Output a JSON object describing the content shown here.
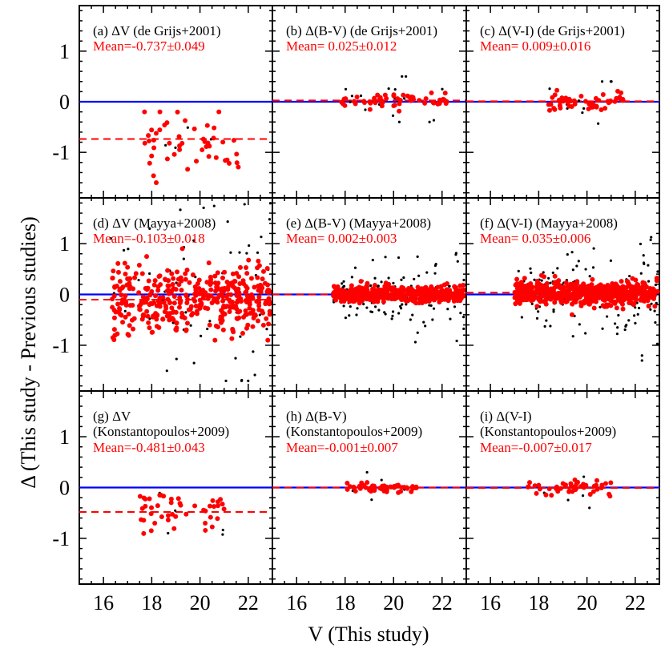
{
  "figure": {
    "xlabel": "V (This study)",
    "ylabel": "Δ (This study - Previous studies)"
  },
  "chart_data": {
    "type": "scatter",
    "layout": "3x3 grid",
    "xlim": [
      15,
      23
    ],
    "ylim": [
      -1.9,
      1.9
    ],
    "xticks": [
      16,
      18,
      20,
      22
    ],
    "yticks": [
      -1,
      0,
      1
    ],
    "zero_line_color": "#0000ff",
    "mean_line_color": "#ff0000",
    "matched_point_color": "#ff0000",
    "rejected_point_color": "#000000",
    "panels": [
      {
        "label": "(a) ΔV (de Grijs+2001)",
        "label2": "",
        "mean_text": "Mean=-0.737±0.049",
        "mean": -0.737,
        "spread": 0.35,
        "red_n": 48,
        "black_n": 5,
        "v_range": [
          17.6,
          21.6
        ],
        "red_range": [
          -1.6,
          -0.2
        ],
        "black_range": [
          -1.9,
          0.1
        ]
      },
      {
        "label": "(b) Δ(B-V) (de Grijs+2001)",
        "label2": "",
        "mean_text": "Mean= 0.025±0.012",
        "mean": 0.025,
        "spread": 0.07,
        "red_n": 60,
        "black_n": 18,
        "v_range": [
          17.8,
          22.2
        ],
        "red_range": [
          -0.2,
          0.2
        ],
        "black_range": [
          -0.4,
          0.5
        ]
      },
      {
        "label": "(c) Δ(V-I) (de Grijs+2001)",
        "label2": "",
        "mean_text": "Mean= 0.009±0.016",
        "mean": 0.009,
        "spread": 0.09,
        "red_n": 55,
        "black_n": 10,
        "v_range": [
          18.3,
          21.5
        ],
        "red_range": [
          -0.3,
          0.3
        ],
        "black_range": [
          -0.7,
          0.4
        ]
      },
      {
        "label": "(d) ΔV (Mayya+2008)",
        "label2": "",
        "mean_text": "Mean=-0.103±0.018",
        "mean": -0.103,
        "spread": 0.32,
        "red_n": 420,
        "black_n": 70,
        "v_range": [
          16.3,
          23.0
        ],
        "red_range": [
          -0.9,
          0.9
        ],
        "black_range": [
          -1.7,
          1.8
        ]
      },
      {
        "label": "(e) Δ(B-V) (Mayya+2008)",
        "label2": "",
        "mean_text": "Mean= 0.002±0.003",
        "mean": 0.002,
        "spread": 0.08,
        "red_n": 480,
        "black_n": 120,
        "v_range": [
          17.5,
          23.0
        ],
        "red_range": [
          -0.3,
          0.3
        ],
        "black_range": [
          -1.0,
          1.6
        ]
      },
      {
        "label": "(f) Δ(V-I) (Mayya+2008)",
        "label2": "",
        "mean_text": "Mean= 0.035±0.006",
        "mean": 0.035,
        "spread": 0.12,
        "red_n": 520,
        "black_n": 130,
        "v_range": [
          17.0,
          23.0
        ],
        "red_range": [
          -0.4,
          0.4
        ],
        "black_range": [
          -1.3,
          1.9
        ]
      },
      {
        "label": "(g) ΔV",
        "label2": "(Konstantopoulos+2009)",
        "mean_text": "Mean=-0.481±0.043",
        "mean": -0.481,
        "spread": 0.22,
        "red_n": 45,
        "black_n": 5,
        "v_range": [
          17.5,
          21.0
        ],
        "red_range": [
          -0.95,
          -0.15
        ],
        "black_range": [
          -1.3,
          -0.1
        ]
      },
      {
        "label": "(h) Δ(B-V)",
        "label2": "(Konstantopoulos+2009)",
        "mean_text": "Mean=-0.001±0.007",
        "mean": -0.001,
        "spread": 0.04,
        "red_n": 50,
        "black_n": 6,
        "v_range": [
          18.0,
          21.0
        ],
        "red_range": [
          -0.1,
          0.1
        ],
        "black_range": [
          -1.3,
          0.3
        ]
      },
      {
        "label": "(i) Δ(V-I)",
        "label2": "(Konstantopoulos+2009)",
        "mean_text": "Mean=-0.007±0.017",
        "mean": -0.007,
        "spread": 0.08,
        "red_n": 45,
        "black_n": 6,
        "v_range": [
          17.5,
          21.0
        ],
        "red_range": [
          -0.25,
          0.2
        ],
        "black_range": [
          -0.4,
          0.7
        ]
      }
    ]
  }
}
